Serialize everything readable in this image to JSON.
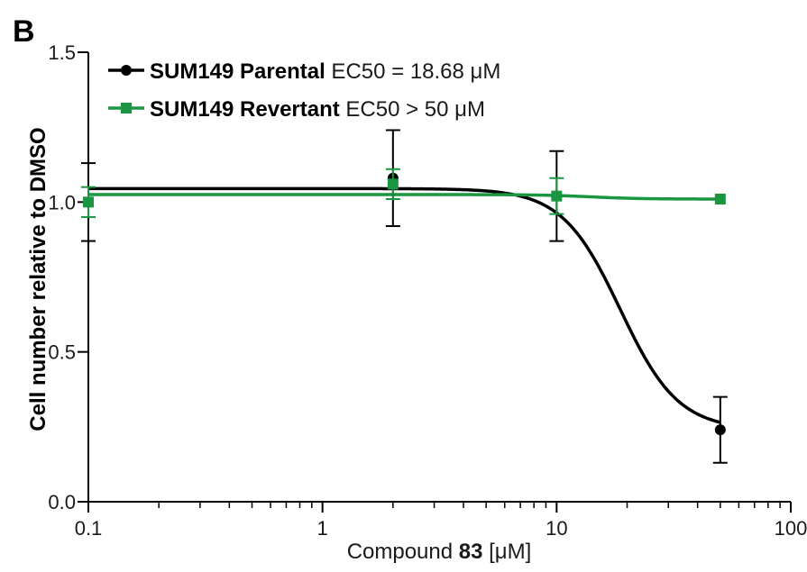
{
  "panel_label": "B",
  "chart_data": {
    "type": "scatter",
    "xscale": "log",
    "xlim": [
      0.1,
      100
    ],
    "ylim": [
      0.0,
      1.5
    ],
    "xlabel": {
      "prefix": "Compound ",
      "bold": "83",
      "suffix": " [μM]"
    },
    "ylabel": "Cell number relative to DMSO",
    "x_ticks": [
      {
        "value": 0.1,
        "label": "0.1"
      },
      {
        "value": 1,
        "label": "1"
      },
      {
        "value": 10,
        "label": "10"
      },
      {
        "value": 100,
        "label": "100"
      }
    ],
    "y_ticks": [
      {
        "value": 0.0,
        "label": "0.0"
      },
      {
        "value": 0.5,
        "label": "0.5"
      },
      {
        "value": 1.0,
        "label": "1.0"
      },
      {
        "value": 1.5,
        "label": "1.5"
      }
    ],
    "legend_position": "top-left",
    "series": [
      {
        "name": "SUM149 Parental",
        "legend_suffix": "EC50 = 18.68 μM",
        "color": "#000000",
        "marker": "circle",
        "x": [
          0.1,
          2,
          10,
          50
        ],
        "y": [
          1.0,
          1.08,
          1.02,
          0.24
        ],
        "err": [
          0.13,
          0.16,
          0.15,
          0.11
        ],
        "fit": {
          "type": "sigmoid",
          "top": 1.045,
          "bottom": 0.24,
          "ec50": 18.68,
          "hill": 3.5
        }
      },
      {
        "name": "SUM149 Revertant",
        "legend_suffix": "EC50 > 50 μM",
        "color": "#1a9641",
        "marker": "square",
        "x": [
          0.1,
          2,
          10,
          50
        ],
        "y": [
          1.0,
          1.06,
          1.02,
          1.01
        ],
        "err": [
          0.05,
          0.05,
          0.06,
          0.0
        ],
        "fit": {
          "type": "sigmoid",
          "top": 1.025,
          "bottom": 1.01,
          "ec50": 14,
          "hill": 4
        }
      }
    ]
  }
}
